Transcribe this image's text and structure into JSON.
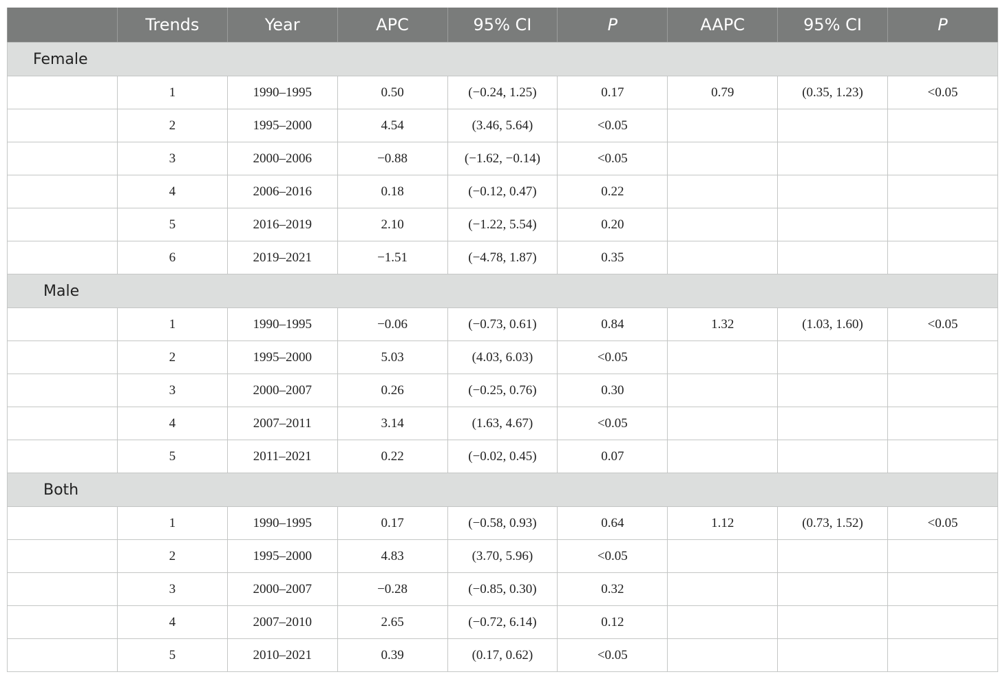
{
  "header": {
    "blank": "",
    "trends": "Trends",
    "year": "Year",
    "apc": "APC",
    "ci1": "95% CI",
    "p1": "P",
    "aapc": "AAPC",
    "ci2": "95% CI",
    "p2": "P"
  },
  "groups": [
    {
      "label": "Female",
      "rows": [
        {
          "trend": "1",
          "year": "1990–1995",
          "apc": "0.50",
          "ci": "(−0.24, 1.25)",
          "p": "0.17",
          "aapc": "0.79",
          "aapc_ci": "(0.35, 1.23)",
          "aapc_p": "<0.05"
        },
        {
          "trend": "2",
          "year": "1995–2000",
          "apc": "4.54",
          "ci": "(3.46, 5.64)",
          "p": "<0.05",
          "aapc": "",
          "aapc_ci": "",
          "aapc_p": ""
        },
        {
          "trend": "3",
          "year": "2000–2006",
          "apc": "−0.88",
          "ci": "(−1.62, −0.14)",
          "p": "<0.05",
          "aapc": "",
          "aapc_ci": "",
          "aapc_p": ""
        },
        {
          "trend": "4",
          "year": "2006–2016",
          "apc": "0.18",
          "ci": "(−0.12, 0.47)",
          "p": "0.22",
          "aapc": "",
          "aapc_ci": "",
          "aapc_p": ""
        },
        {
          "trend": "5",
          "year": "2016–2019",
          "apc": "2.10",
          "ci": "(−1.22, 5.54)",
          "p": "0.20",
          "aapc": "",
          "aapc_ci": "",
          "aapc_p": ""
        },
        {
          "trend": "6",
          "year": "2019–2021",
          "apc": "−1.51",
          "ci": "(−4.78, 1.87)",
          "p": "0.35",
          "aapc": "",
          "aapc_ci": "",
          "aapc_p": ""
        }
      ]
    },
    {
      "label": "Male",
      "rows": [
        {
          "trend": "1",
          "year": "1990–1995",
          "apc": "−0.06",
          "ci": "(−0.73, 0.61)",
          "p": "0.84",
          "aapc": "1.32",
          "aapc_ci": "(1.03, 1.60)",
          "aapc_p": "<0.05"
        },
        {
          "trend": "2",
          "year": "1995–2000",
          "apc": "5.03",
          "ci": "(4.03, 6.03)",
          "p": "<0.05",
          "aapc": "",
          "aapc_ci": "",
          "aapc_p": ""
        },
        {
          "trend": "3",
          "year": "2000–2007",
          "apc": "0.26",
          "ci": "(−0.25, 0.76)",
          "p": "0.30",
          "aapc": "",
          "aapc_ci": "",
          "aapc_p": ""
        },
        {
          "trend": "4",
          "year": "2007–2011",
          "apc": "3.14",
          "ci": "(1.63, 4.67)",
          "p": "<0.05",
          "aapc": "",
          "aapc_ci": "",
          "aapc_p": ""
        },
        {
          "trend": "5",
          "year": "2011–2021",
          "apc": "0.22",
          "ci": "(−0.02, 0.45)",
          "p": "0.07",
          "aapc": "",
          "aapc_ci": "",
          "aapc_p": ""
        }
      ]
    },
    {
      "label": "Both",
      "rows": [
        {
          "trend": "1",
          "year": "1990–1995",
          "apc": "0.17",
          "ci": "(−0.58, 0.93)",
          "p": "0.64",
          "aapc": "1.12",
          "aapc_ci": "(0.73, 1.52)",
          "aapc_p": "<0.05"
        },
        {
          "trend": "2",
          "year": "1995–2000",
          "apc": "4.83",
          "ci": "(3.70, 5.96)",
          "p": "<0.05",
          "aapc": "",
          "aapc_ci": "",
          "aapc_p": ""
        },
        {
          "trend": "3",
          "year": "2000–2007",
          "apc": "−0.28",
          "ci": "(−0.85, 0.30)",
          "p": "0.32",
          "aapc": "",
          "aapc_ci": "",
          "aapc_p": ""
        },
        {
          "trend": "4",
          "year": "2007–2010",
          "apc": "2.65",
          "ci": "(−0.72, 6.14)",
          "p": "0.12",
          "aapc": "",
          "aapc_ci": "",
          "aapc_p": ""
        },
        {
          "trend": "5",
          "year": "2010–2021",
          "apc": "0.39",
          "ci": "(0.17, 0.62)",
          "p": "<0.05",
          "aapc": "",
          "aapc_ci": "",
          "aapc_p": ""
        }
      ]
    }
  ]
}
